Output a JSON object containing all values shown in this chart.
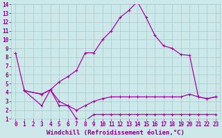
{
  "title": "",
  "xlabel": "Windchill (Refroidissement éolien,°C)",
  "ylabel": "",
  "bg_color": "#cce8e8",
  "grid_color": "#aac8cc",
  "line_color": "#aa00aa",
  "xlim": [
    -0.5,
    23.5
  ],
  "ylim": [
    1,
    14
  ],
  "xticks": [
    0,
    1,
    2,
    3,
    4,
    5,
    6,
    7,
    8,
    9,
    10,
    11,
    12,
    13,
    14,
    15,
    16,
    17,
    18,
    19,
    20,
    21,
    22,
    23
  ],
  "yticks": [
    1,
    2,
    3,
    4,
    5,
    6,
    7,
    8,
    9,
    10,
    11,
    12,
    13,
    14
  ],
  "line1_x": [
    0,
    1,
    3,
    4,
    5,
    6,
    7,
    8,
    9,
    10,
    11,
    12,
    13,
    14,
    15,
    16,
    17,
    18,
    19,
    20,
    21,
    22,
    23
  ],
  "line1_y": [
    8.5,
    4.2,
    3.8,
    4.3,
    5.2,
    5.8,
    6.5,
    8.5,
    8.5,
    10.0,
    11.0,
    12.5,
    13.3,
    14.3,
    12.5,
    10.5,
    9.3,
    9.0,
    8.3,
    8.2,
    3.5,
    3.3,
    3.5
  ],
  "line2_x": [
    1,
    3,
    4,
    5,
    6,
    7,
    8,
    9,
    10,
    11,
    12,
    13,
    14,
    15,
    16,
    17,
    18,
    19,
    20,
    21,
    22,
    23
  ],
  "line2_y": [
    4.2,
    3.8,
    4.3,
    3.0,
    2.5,
    2.0,
    2.5,
    3.0,
    3.3,
    3.5,
    3.5,
    3.5,
    3.5,
    3.5,
    3.5,
    3.5,
    3.5,
    3.5,
    3.8,
    3.5,
    3.3,
    3.5
  ],
  "line3_x": [
    1,
    3,
    4,
    5,
    6,
    7,
    8,
    9,
    10,
    11,
    12,
    13,
    14,
    15,
    16,
    17,
    18,
    19,
    20,
    21,
    22,
    23
  ],
  "line3_y": [
    4.2,
    2.5,
    4.3,
    2.5,
    2.5,
    1.0,
    0.8,
    1.5,
    1.5,
    1.5,
    1.5,
    1.5,
    1.5,
    1.5,
    1.5,
    1.5,
    1.5,
    1.5,
    1.5,
    1.5,
    1.5,
    1.5
  ],
  "font_color": "#880088",
  "tick_fontsize": 5.5,
  "xlabel_fontsize": 6.5
}
